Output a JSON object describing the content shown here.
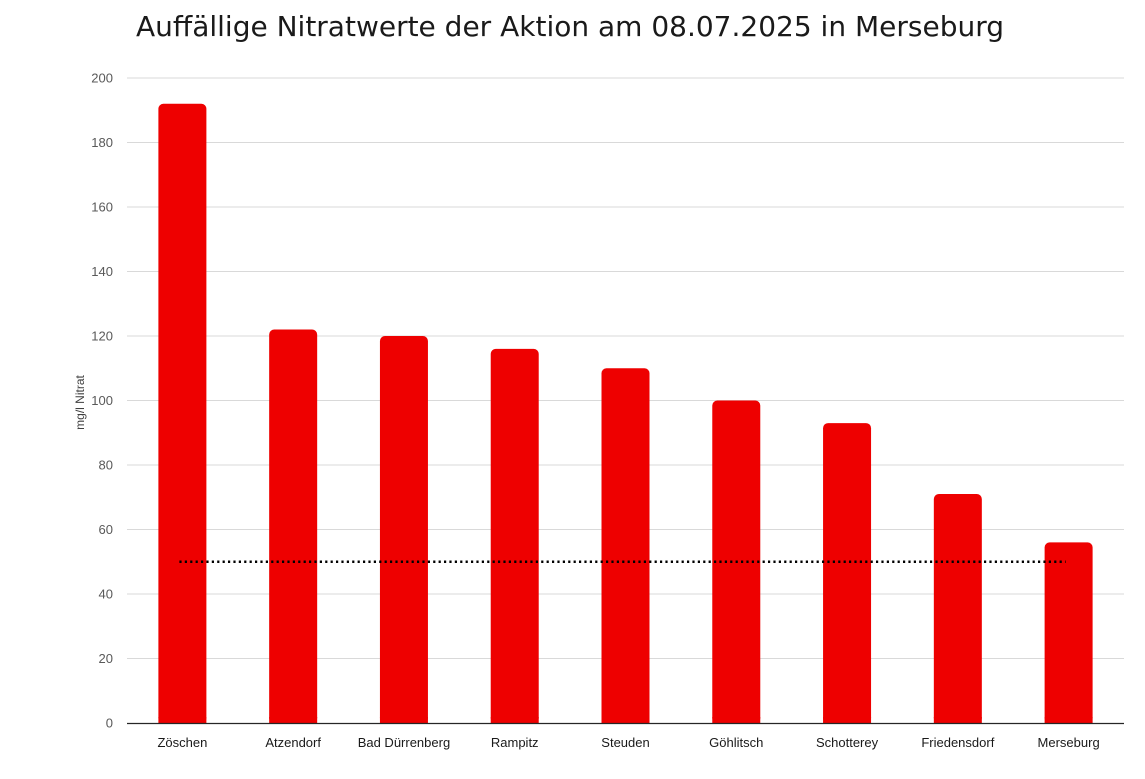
{
  "chart_data": {
    "type": "bar",
    "title": "Auffällige Nitratwerte der Aktion am 08.07.2025 in Merseburg",
    "xlabel": "",
    "ylabel": "mg/l Nitrat",
    "ylim": [
      0,
      200
    ],
    "yticks": [
      0,
      20,
      40,
      60,
      80,
      100,
      120,
      140,
      160,
      180,
      200
    ],
    "grid": true,
    "categories": [
      "Zöschen",
      "Atzendorf",
      "Bad Dürrenberg",
      "Rampitz",
      "Steuden",
      "Göhlitsch",
      "Schotterey",
      "Friedensdorf",
      "Merseburg"
    ],
    "values": [
      192,
      122,
      120,
      116,
      110,
      100,
      93,
      71,
      56
    ],
    "bar_color": "#ee0000",
    "threshold": {
      "value": 50,
      "style": "dotted",
      "color": "#000000"
    }
  }
}
